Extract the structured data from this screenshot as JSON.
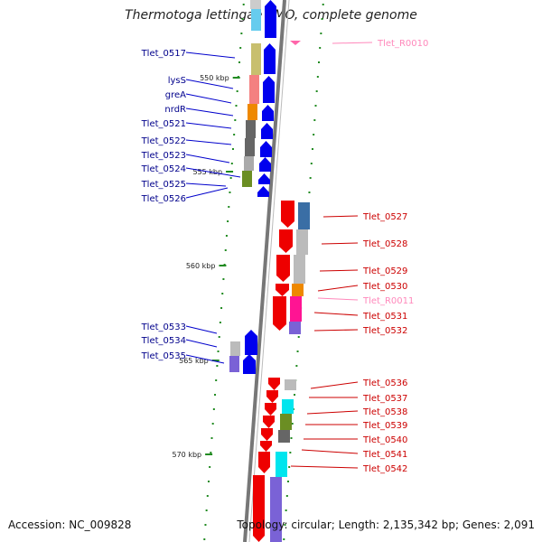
{
  "title": "Thermotoga lettingae TMO, complete genome",
  "footer": {
    "accession": "Accession: NC_009828",
    "topology": "Topology: circular; Length: 2,135,342 bp; Genes: 2,091"
  },
  "colors": {
    "forward_arrow": "#0000ee",
    "reverse_arrow": "#ee0000",
    "forward_label": "#00008b",
    "reverse_label": "#cc0000",
    "rna_label": "#ff88bb",
    "backbone": "#888888",
    "tick": "#228b22"
  },
  "position_marks": [
    "550 kbp",
    "555 kbp",
    "560 kbp",
    "565 kbp",
    "570 kbp"
  ],
  "forward_genes": [
    "Tlet_0517",
    "lysS",
    "greA",
    "nrdR",
    "Tlet_0521",
    "Tlet_0522",
    "Tlet_0523",
    "Tlet_0524",
    "Tlet_0525",
    "Tlet_0526",
    "Tlet_0533",
    "Tlet_0534",
    "Tlet_0535"
  ],
  "reverse_genes": [
    "Tlet_R0010",
    "Tlet_0527",
    "Tlet_0528",
    "Tlet_0529",
    "Tlet_0530",
    "Tlet_R0011",
    "Tlet_0531",
    "Tlet_0532",
    "Tlet_0536",
    "Tlet_0537",
    "Tlet_0538",
    "Tlet_0539",
    "Tlet_0540",
    "Tlet_0541",
    "Tlet_0542"
  ]
}
